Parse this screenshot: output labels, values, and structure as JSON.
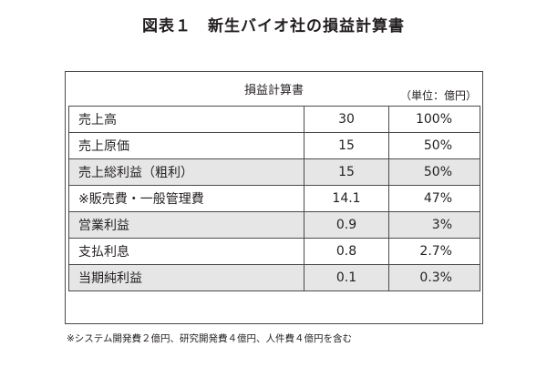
{
  "title": "図表１　新生バイオ社の損益計算書",
  "table": {
    "header_title": "損益計算書",
    "unit": "（単位：億円）",
    "rows": [
      {
        "label": "売上高",
        "value": "30",
        "pct": "100%",
        "shaded": false
      },
      {
        "label": "売上原価",
        "value": "15",
        "pct": "50%",
        "shaded": false
      },
      {
        "label": "売上総利益（粗利）",
        "value": "15",
        "pct": "50%",
        "shaded": true
      },
      {
        "label": "※販売費・一般管理費",
        "value": "14.1",
        "pct": "47%",
        "shaded": false
      },
      {
        "label": "営業利益",
        "value": "0.9",
        "pct": "3%",
        "shaded": true
      },
      {
        "label": "支払利息",
        "value": "0.8",
        "pct": "2.7%",
        "shaded": false
      },
      {
        "label": "当期純利益",
        "value": "0.1",
        "pct": "0.3%",
        "shaded": true
      }
    ]
  },
  "footnote": "※システム開発費２億円、研究開発費４億円、人件費４億円を含む",
  "colors": {
    "shaded_row": "#e6e6e6",
    "border": "#4a4a4a",
    "text": "#231f20"
  }
}
